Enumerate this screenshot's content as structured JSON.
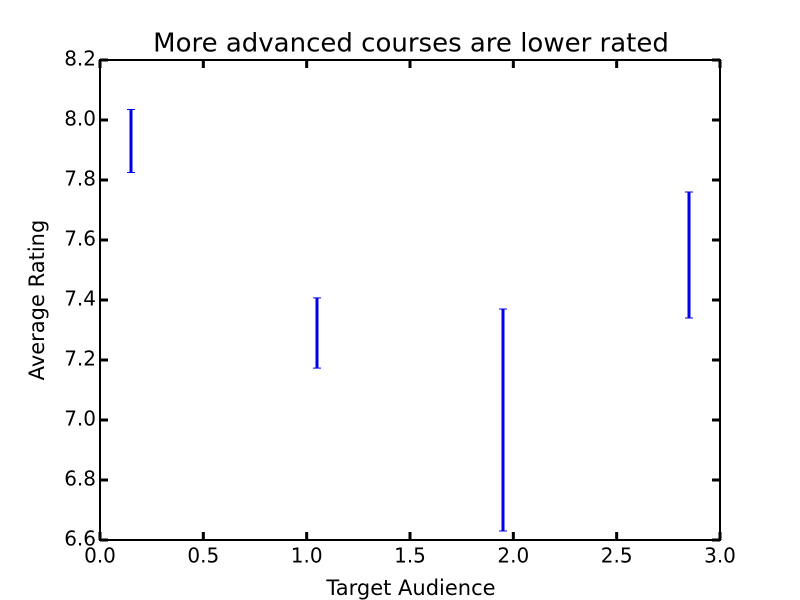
{
  "chart_data": {
    "type": "errorbar",
    "title": "More advanced courses are lower rated",
    "x_label": "Target Audience",
    "y_label": "Average Rating",
    "series": [
      {
        "color": "#0000ee",
        "x": [
          0.15,
          1.05,
          1.95,
          2.85
        ],
        "values": [
          7.93,
          7.29,
          7.0,
          7.55
        ],
        "errors": [
          0.105,
          0.117,
          0.37,
          0.21
        ]
      }
    ],
    "xlim": [
      0,
      3
    ],
    "ylim": [
      6.6,
      8.2
    ],
    "xticks": [
      {
        "value": 0,
        "label": "0.0"
      },
      0.5,
      {
        "value": 1,
        "label": "1.0"
      },
      1.5,
      {
        "value": 2,
        "label": "2.0"
      },
      2.5,
      {
        "value": 3,
        "label": "3.0"
      }
    ],
    "yticks": [
      6.6,
      6.8,
      {
        "value": 7,
        "label": "7.0"
      },
      7.2,
      7.4,
      7.6,
      7.8,
      {
        "value": 8,
        "label": "8.0"
      },
      8.2
    ]
  }
}
